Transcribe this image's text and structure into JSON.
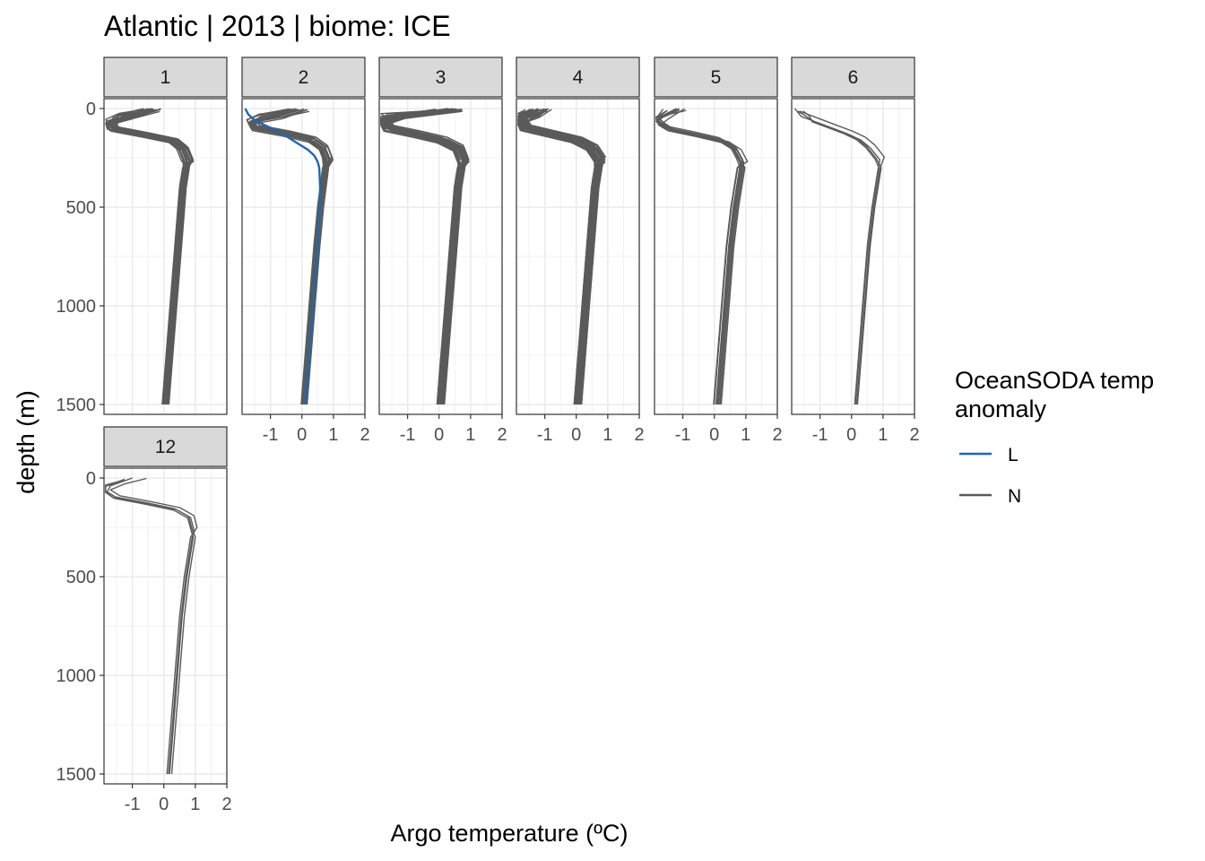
{
  "chart_data": {
    "type": "line",
    "title": "Atlantic | 2013 | biome: ICE",
    "xlabel": "Argo temperature (ºC)",
    "ylabel": "depth (m)",
    "xlim": [
      -1.9,
      2.0
    ],
    "ylim": [
      1550,
      -50
    ],
    "y_reversed": true,
    "x_ticks": [
      "-1",
      "0",
      "1",
      "2"
    ],
    "y_ticks": [
      "0",
      "500",
      "1000",
      "1500"
    ],
    "grid": true,
    "legend": {
      "title": "OceanSODA temp\nanomaly",
      "title_lines": [
        "OceanSODA temp",
        "anomaly"
      ],
      "position": "right",
      "entries": [
        {
          "label": "L",
          "color": "#2166ac"
        },
        {
          "label": "N",
          "color": "#5a5a5a"
        }
      ]
    },
    "panels": [
      {
        "label": "1",
        "series": [
          {
            "name": "N",
            "color": "#5a5a5a",
            "profiles": 25,
            "depth": [
              0,
              40,
              70,
              100,
              130,
              160,
              200,
              260,
              300,
              400,
              500,
              700,
              1000,
              1300,
              1500
            ],
            "temperature": [
              -0.4,
              -1.2,
              -1.7,
              -1.6,
              -0.6,
              0.3,
              0.6,
              0.75,
              0.7,
              0.6,
              0.55,
              0.45,
              0.3,
              0.15,
              0.05
            ]
          }
        ]
      },
      {
        "label": "2",
        "series": [
          {
            "name": "N",
            "color": "#5a5a5a",
            "profiles": 18,
            "depth": [
              0,
              40,
              70,
              100,
              130,
              160,
              200,
              260,
              300,
              400,
              500,
              700,
              1000,
              1300,
              1500
            ],
            "temperature": [
              -0.2,
              -1.0,
              -1.6,
              -1.5,
              -0.5,
              0.3,
              0.65,
              0.8,
              0.78,
              0.7,
              0.62,
              0.5,
              0.35,
              0.2,
              0.1
            ]
          },
          {
            "name": "L",
            "color": "#2166ac",
            "profiles": 1,
            "depth": [
              0,
              30,
              60,
              90,
              120,
              150,
              180,
              210,
              240,
              270,
              300,
              400,
              500,
              700,
              1000,
              1300,
              1500
            ],
            "temperature": [
              -1.8,
              -1.7,
              -1.5,
              -1.1,
              -0.7,
              -0.4,
              -0.1,
              0.2,
              0.4,
              0.5,
              0.55,
              0.58,
              0.57,
              0.5,
              0.35,
              0.2,
              0.1
            ]
          }
        ]
      },
      {
        "label": "3",
        "series": [
          {
            "name": "N",
            "color": "#5a5a5a",
            "profiles": 30,
            "depth": [
              0,
              40,
              70,
              100,
              130,
              160,
              200,
              260,
              300,
              400,
              500,
              700,
              1000,
              1300,
              1500
            ],
            "temperature": [
              0.3,
              -1.5,
              -1.75,
              -1.6,
              -0.7,
              0.1,
              0.6,
              0.75,
              0.7,
              0.6,
              0.55,
              0.45,
              0.3,
              0.15,
              0.05
            ]
          }
        ]
      },
      {
        "label": "4",
        "series": [
          {
            "name": "N",
            "color": "#5a5a5a",
            "profiles": 30,
            "depth": [
              0,
              40,
              70,
              100,
              130,
              160,
              200,
              260,
              300,
              400,
              500,
              700,
              1000,
              1300,
              1500
            ],
            "temperature": [
              -1.2,
              -1.6,
              -1.75,
              -1.6,
              -0.8,
              0.0,
              0.5,
              0.75,
              0.7,
              0.6,
              0.55,
              0.45,
              0.3,
              0.15,
              0.05
            ]
          }
        ]
      },
      {
        "label": "5",
        "series": [
          {
            "name": "N",
            "color": "#5a5a5a",
            "profiles": 10,
            "depth": [
              0,
              40,
              70,
              100,
              130,
              160,
              200,
              260,
              300,
              400,
              500,
              700,
              1000,
              1300,
              1500
            ],
            "temperature": [
              -1.2,
              -1.7,
              -1.7,
              -1.4,
              -0.5,
              0.3,
              0.7,
              0.9,
              0.85,
              0.75,
              0.65,
              0.5,
              0.35,
              0.2,
              0.1
            ]
          }
        ]
      },
      {
        "label": "6",
        "series": [
          {
            "name": "N",
            "color": "#5a5a5a",
            "profiles": 4,
            "depth": [
              0,
              40,
              70,
              100,
              130,
              160,
              200,
              260,
              300,
              400,
              500,
              700,
              1000,
              1300,
              1500
            ],
            "temperature": [
              -1.8,
              -1.6,
              -1.1,
              -0.6,
              -0.1,
              0.3,
              0.6,
              0.9,
              0.85,
              0.75,
              0.65,
              0.5,
              0.35,
              0.2,
              0.1
            ]
          }
        ]
      },
      {
        "label": "12",
        "series": [
          {
            "name": "N",
            "color": "#5a5a5a",
            "profiles": 4,
            "depth": [
              0,
              40,
              70,
              100,
              130,
              160,
              200,
              260,
              300,
              400,
              500,
              700,
              1000,
              1300,
              1500
            ],
            "temperature": [
              -1.0,
              -1.7,
              -1.8,
              -1.5,
              -0.5,
              0.4,
              0.85,
              0.95,
              0.9,
              0.8,
              0.7,
              0.55,
              0.4,
              0.25,
              0.15
            ]
          }
        ]
      }
    ]
  }
}
